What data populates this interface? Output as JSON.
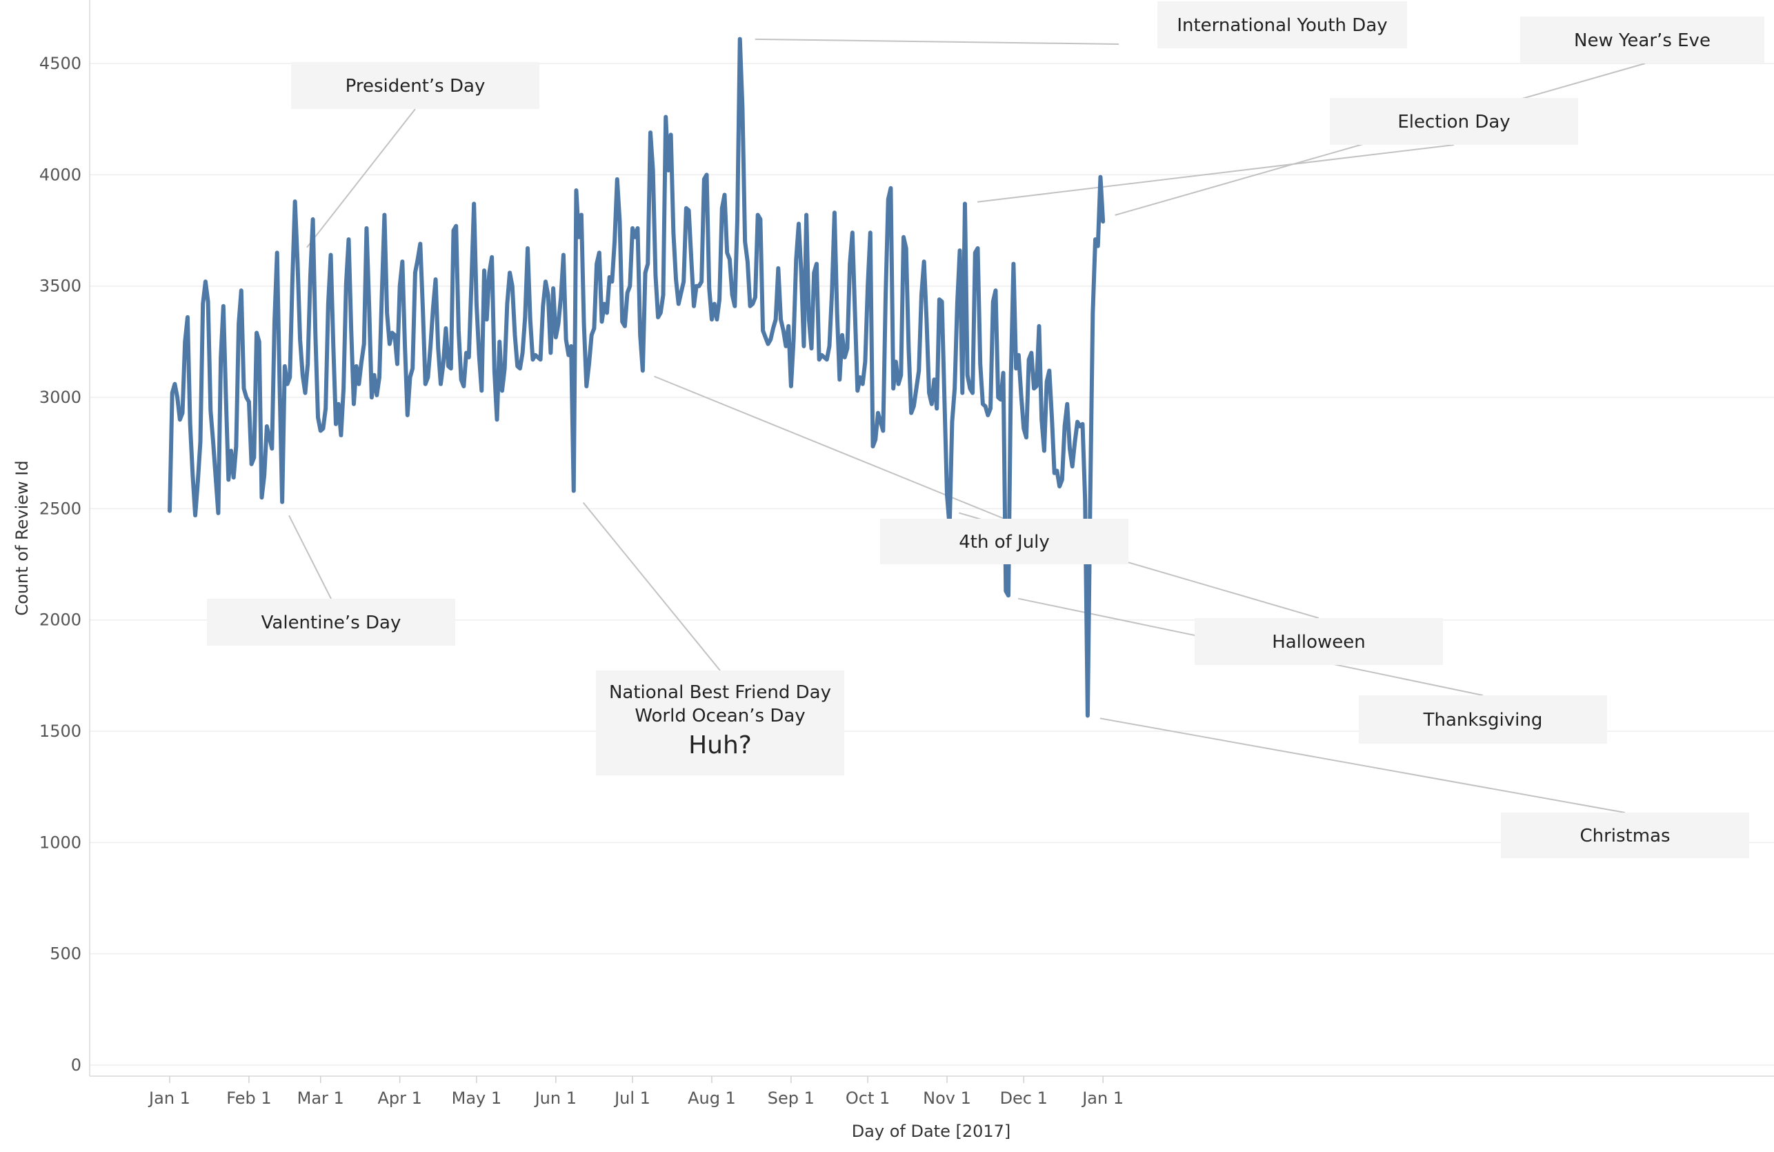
{
  "chart_data": {
    "type": "line",
    "xlabel": "Day of Date [2017]",
    "ylabel": "Count of Review Id",
    "ylim": [
      0,
      4600
    ],
    "yticks": [
      0,
      500,
      1000,
      1500,
      2000,
      2500,
      3000,
      3500,
      4000,
      4500
    ],
    "xticks": [
      {
        "label": "Jan 1",
        "date": "2017-01-01"
      },
      {
        "label": "Feb 1",
        "date": "2017-02-01"
      },
      {
        "label": "Mar 1",
        "date": "2017-03-01"
      },
      {
        "label": "Apr 1",
        "date": "2017-04-01"
      },
      {
        "label": "May 1",
        "date": "2017-05-01"
      },
      {
        "label": "Jun 1",
        "date": "2017-06-01"
      },
      {
        "label": "Jul 1",
        "date": "2017-07-01"
      },
      {
        "label": "Aug 1",
        "date": "2017-08-01"
      },
      {
        "label": "Sep 1",
        "date": "2017-09-01"
      },
      {
        "label": "Oct 1",
        "date": "2017-10-01"
      },
      {
        "label": "Nov 1",
        "date": "2017-11-01"
      },
      {
        "label": "Dec 1",
        "date": "2017-12-01"
      },
      {
        "label": "Jan 1",
        "date": "2018-01-01"
      }
    ],
    "grid": true,
    "color": "#4e79a7",
    "series": [
      {
        "start_date": "2017-01-01",
        "values": [
          2490,
          3020,
          3060,
          3000,
          2900,
          2930,
          3250,
          3360,
          2880,
          2650,
          2470,
          2620,
          2800,
          3420,
          3520,
          3430,
          2940,
          2800,
          2640,
          2480,
          3180,
          3410,
          3000,
          2630,
          2760,
          2640,
          2780,
          3330,
          3480,
          3040,
          3000,
          2980,
          2700,
          2730,
          3290,
          3250,
          2550,
          2650,
          2870,
          2820,
          2770,
          3340,
          3650,
          3060,
          2530,
          3140,
          3060,
          3090,
          3530,
          3880,
          3610,
          3260,
          3100,
          3020,
          3150,
          3540,
          3800,
          3280,
          2910,
          2850,
          2860,
          2950,
          3420,
          3640,
          3230,
          2880,
          2970,
          2830,
          3040,
          3510,
          3710,
          3300,
          2970,
          3140,
          3060,
          3160,
          3240,
          3760,
          3410,
          3000,
          3100,
          3010,
          3090,
          3470,
          3820,
          3380,
          3240,
          3290,
          3280,
          3150,
          3500,
          3610,
          3230,
          2920,
          3090,
          3130,
          3560,
          3620,
          3690,
          3400,
          3060,
          3090,
          3230,
          3400,
          3530,
          3220,
          3060,
          3150,
          3310,
          3140,
          3130,
          3750,
          3770,
          3300,
          3080,
          3050,
          3200,
          3180,
          3510,
          3870,
          3420,
          3190,
          3030,
          3570,
          3350,
          3560,
          3630,
          3120,
          2900,
          3250,
          3030,
          3130,
          3420,
          3560,
          3500,
          3280,
          3140,
          3130,
          3200,
          3360,
          3670,
          3350,
          3170,
          3190,
          3180,
          3170,
          3410,
          3520,
          3460,
          3200,
          3490,
          3270,
          3330,
          3450,
          3640,
          3260,
          3190,
          3230,
          2580,
          3930,
          3720,
          3820,
          3330,
          3050,
          3150,
          3280,
          3310,
          3600,
          3650,
          3340,
          3420,
          3380,
          3540,
          3520,
          3700,
          3980,
          3790,
          3340,
          3320,
          3470,
          3500,
          3760,
          3720,
          3760,
          3280,
          3120,
          3560,
          3600,
          4190,
          4020,
          3550,
          3360,
          3380,
          3460,
          4260,
          4020,
          4180,
          3740,
          3530,
          3420,
          3470,
          3520,
          3850,
          3840,
          3620,
          3410,
          3500,
          3500,
          3520,
          3980,
          4000,
          3490,
          3350,
          3420,
          3350,
          3440,
          3850,
          3910,
          3650,
          3620,
          3460,
          3410,
          3800,
          4610,
          4300,
          3700,
          3610,
          3410,
          3420,
          3450,
          3820,
          3800,
          3300,
          3270,
          3240,
          3260,
          3310,
          3350,
          3580,
          3350,
          3300,
          3230,
          3320,
          3050,
          3260,
          3620,
          3780,
          3560,
          3230,
          3820,
          3350,
          3220,
          3560,
          3600,
          3170,
          3190,
          3180,
          3170,
          3230,
          3470,
          3830,
          3380,
          3080,
          3280,
          3180,
          3220,
          3600,
          3740,
          3380,
          3030,
          3090,
          3060,
          3160,
          3500,
          3740,
          2780,
          2810,
          2930,
          2890,
          2850,
          3460,
          3890,
          3940,
          3040,
          3160,
          3060,
          3100,
          3720,
          3670,
          3220,
          2930,
          2960,
          3040,
          3120,
          3460,
          3610,
          3350,
          3020,
          2970,
          3080,
          2950,
          3440,
          3430,
          2990,
          2560,
          2420,
          2890,
          3040,
          3420,
          3660,
          3020,
          3870,
          3100,
          3040,
          3020,
          3650,
          3670,
          3150,
          2970,
          2960,
          2920,
          2950,
          3430,
          3480,
          3000,
          2990,
          3110,
          2130,
          2110,
          3100,
          3600,
          3130,
          3190,
          3010,
          2860,
          2820,
          3170,
          3200,
          3040,
          3050,
          3320,
          2900,
          2760,
          3070,
          3120,
          2910,
          2660,
          2670,
          2600,
          2630,
          2870,
          2970,
          2770,
          2690,
          2800,
          2890,
          2870,
          2880,
          2540,
          1570,
          2540,
          3380,
          3710,
          3680,
          3990,
          3790
        ]
      }
    ],
    "annotations": [
      {
        "id": "international-youth-day",
        "lines": [
          "International Youth Day"
        ],
        "date": "2017-08-12",
        "value": 4610
      },
      {
        "id": "new-years-eve",
        "lines": [
          "New Year’s Eve"
        ],
        "date": "2017-12-31",
        "value": 3800
      },
      {
        "id": "presidents-day",
        "lines": [
          "President’s Day"
        ],
        "date": "2017-02-20",
        "value": 3620
      },
      {
        "id": "election-day",
        "lines": [
          "Election Day"
        ],
        "date": "2017-11-07",
        "value": 3870
      },
      {
        "id": "valentines-day",
        "lines": [
          "Valentine’s Day"
        ],
        "date": "2017-02-14",
        "value": 2530
      },
      {
        "id": "national-best-friend-day",
        "lines": [
          "National Best Friend Day",
          "World Ocean’s Day"
        ],
        "big": "Huh?",
        "date": "2017-06-08",
        "value": 2580
      },
      {
        "id": "fourth-of-july",
        "lines": [
          "4th of July"
        ],
        "date": "2017-07-04",
        "value": 3120
      },
      {
        "id": "halloween",
        "lines": [
          "Halloween"
        ],
        "date": "2017-10-31",
        "value": 2500
      },
      {
        "id": "thanksgiving",
        "lines": [
          "Thanksgiving"
        ],
        "date": "2017-11-23",
        "value": 2110
      },
      {
        "id": "christmas",
        "lines": [
          "Christmas"
        ],
        "date": "2017-12-25",
        "value": 1570
      }
    ]
  }
}
